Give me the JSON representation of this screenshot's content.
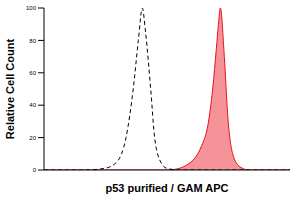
{
  "chart_data": {
    "type": "histogram",
    "x_label": "p53 purified / GAM APC",
    "y_label": "Relative Cell Count",
    "log": "x",
    "grid": false,
    "tick_labels": "y",
    "xlim": [
      1,
      1000000
    ],
    "ylim": [
      0,
      100
    ],
    "yticks": [
      0,
      20,
      40,
      60,
      80,
      100
    ],
    "x": [
      1,
      3,
      10,
      30,
      60,
      100,
      150,
      200,
      250,
      300,
      400,
      500,
      700,
      1000,
      2000,
      3000,
      5000,
      7000,
      10000,
      13000,
      16000,
      18000,
      20000,
      25000,
      30000,
      40000,
      60000,
      100000,
      300000,
      1000000
    ],
    "series": [
      {
        "type": "line",
        "color": "#000000",
        "line_style": "dashed",
        "values": [
          0,
          0,
          0,
          1,
          5,
          20,
          50,
          80,
          100,
          85,
          50,
          20,
          5,
          1,
          0,
          0,
          0,
          0,
          0,
          0,
          0,
          0,
          0,
          0,
          0,
          0,
          0,
          0,
          0,
          0
        ]
      },
      {
        "type": "area",
        "color": "#e8101a",
        "values": [
          0,
          0,
          0,
          0,
          0,
          0,
          0,
          0,
          0,
          0,
          0,
          0,
          0,
          0,
          1,
          3,
          8,
          15,
          28,
          50,
          75,
          90,
          100,
          70,
          35,
          10,
          2,
          0,
          0,
          0
        ]
      }
    ]
  }
}
